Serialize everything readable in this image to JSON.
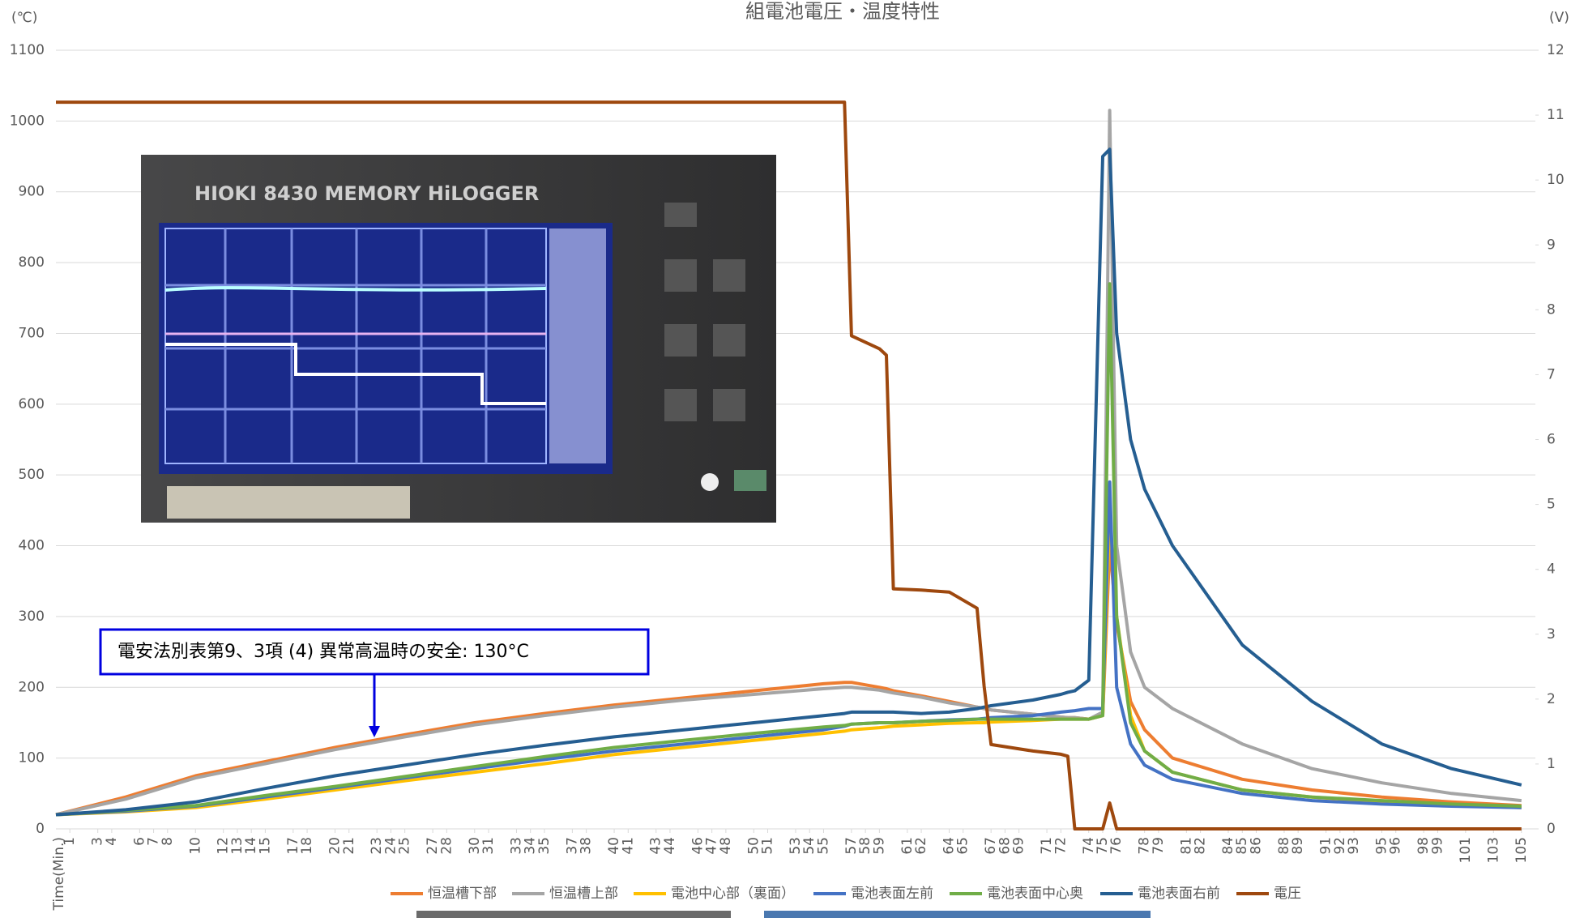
{
  "chart_data": {
    "type": "line",
    "title": "組電池電圧・温度特性",
    "y_label": "(℃)",
    "y2_label": "(V)",
    "x_label": "Time(Min.)",
    "annotation": "電安法別表第9、3項 (4) 異常高温時の安全: 130°C",
    "legend": "bottom",
    "grid": true,
    "xlim": [
      0,
      106
    ],
    "xticks": [
      1,
      3,
      4,
      6,
      7,
      8,
      10,
      12,
      13,
      14,
      15,
      17,
      18,
      20,
      21,
      23,
      24,
      25,
      27,
      28,
      30,
      31,
      33,
      34,
      35,
      37,
      38,
      40,
      41,
      43,
      44,
      46,
      47,
      48,
      50,
      51,
      53,
      54,
      55,
      57,
      58,
      59,
      61,
      62,
      64,
      65,
      67,
      68,
      69,
      71,
      72,
      74,
      75,
      76,
      78,
      79,
      81,
      82,
      84,
      85,
      86,
      88,
      89,
      91,
      92,
      93,
      95,
      96,
      98,
      99,
      101,
      103,
      105
    ],
    "ylim": [
      0,
      1100
    ],
    "yticks": [
      0,
      100,
      200,
      300,
      400,
      500,
      600,
      700,
      800,
      900,
      1000,
      1100
    ],
    "y2lim": [
      0,
      12
    ],
    "y2ticks": [
      0,
      1,
      2,
      3,
      4,
      5,
      6,
      7,
      8,
      9,
      10,
      11,
      12
    ],
    "x": [
      0,
      5,
      10,
      15,
      20,
      25,
      30,
      35,
      40,
      45,
      50,
      55,
      56.5,
      57,
      59,
      59.5,
      60,
      62,
      64,
      66,
      66.5,
      67,
      70,
      72,
      72.5,
      73,
      74,
      75,
      75.5,
      76,
      77,
      78,
      80,
      85,
      90,
      95,
      100,
      105
    ],
    "series": [
      {
        "name": "恒温槽下部",
        "color": "#ed7d31",
        "values": [
          20,
          45,
          75,
          95,
          115,
          133,
          150,
          163,
          175,
          185,
          195,
          205,
          207,
          207,
          200,
          198,
          195,
          188,
          180,
          172,
          170,
          168,
          162,
          158,
          157,
          157,
          155,
          160,
          400,
          290,
          180,
          140,
          100,
          70,
          55,
          45,
          38,
          33
        ]
      },
      {
        "name": "恒温槽上部",
        "color": "#a5a5a5",
        "values": [
          20,
          42,
          72,
          92,
          112,
          130,
          147,
          160,
          172,
          182,
          190,
          198,
          200,
          200,
          196,
          194,
          192,
          186,
          178,
          172,
          170,
          168,
          162,
          158,
          157,
          157,
          155,
          165,
          1015,
          400,
          250,
          200,
          170,
          120,
          85,
          65,
          50,
          40
        ]
      },
      {
        "name": "電池中心部（裏面）",
        "color": "#ffc000",
        "values": [
          20,
          24,
          30,
          42,
          55,
          68,
          80,
          92,
          105,
          115,
          125,
          135,
          138,
          140,
          143,
          144,
          145,
          147,
          149,
          150,
          150,
          151,
          153,
          155,
          155,
          155,
          155,
          160,
          440,
          300,
          160,
          110,
          80,
          55,
          45,
          38,
          33,
          30
        ]
      },
      {
        "name": "電池表面左前",
        "color": "#4472c4",
        "values": [
          20,
          25,
          32,
          45,
          58,
          72,
          85,
          98,
          110,
          120,
          130,
          140,
          145,
          148,
          150,
          150,
          150,
          152,
          154,
          155,
          156,
          157,
          160,
          165,
          166,
          167,
          170,
          170,
          490,
          200,
          120,
          90,
          70,
          50,
          40,
          35,
          32,
          30
        ]
      },
      {
        "name": "電池表面中心奥",
        "color": "#70ad47",
        "values": [
          20,
          26,
          33,
          47,
          60,
          74,
          88,
          102,
          115,
          125,
          135,
          144,
          146,
          148,
          150,
          150,
          150,
          152,
          153,
          155,
          155,
          155,
          155,
          155,
          155,
          155,
          155,
          160,
          770,
          300,
          150,
          110,
          80,
          55,
          45,
          40,
          35,
          32
        ]
      },
      {
        "name": "電池表面右前",
        "color": "#255e91",
        "values": [
          20,
          27,
          38,
          57,
          75,
          90,
          105,
          118,
          130,
          140,
          150,
          160,
          163,
          165,
          165,
          165,
          165,
          163,
          165,
          170,
          172,
          174,
          182,
          190,
          193,
          195,
          210,
          950,
          960,
          700,
          550,
          480,
          400,
          260,
          180,
          120,
          85,
          62
        ]
      },
      {
        "name": "電圧",
        "color": "#9e480e",
        "axis": "y2",
        "values": [
          11.2,
          11.2,
          11.2,
          11.2,
          11.2,
          11.2,
          11.2,
          11.2,
          11.2,
          11.2,
          11.2,
          11.2,
          11.2,
          7.6,
          7.4,
          7.3,
          3.7,
          3.68,
          3.65,
          3.4,
          2.2,
          1.3,
          1.2,
          1.15,
          1.12,
          0,
          0,
          0,
          0.4,
          0,
          0,
          0,
          0,
          0,
          0,
          0,
          0,
          0
        ]
      }
    ]
  }
}
